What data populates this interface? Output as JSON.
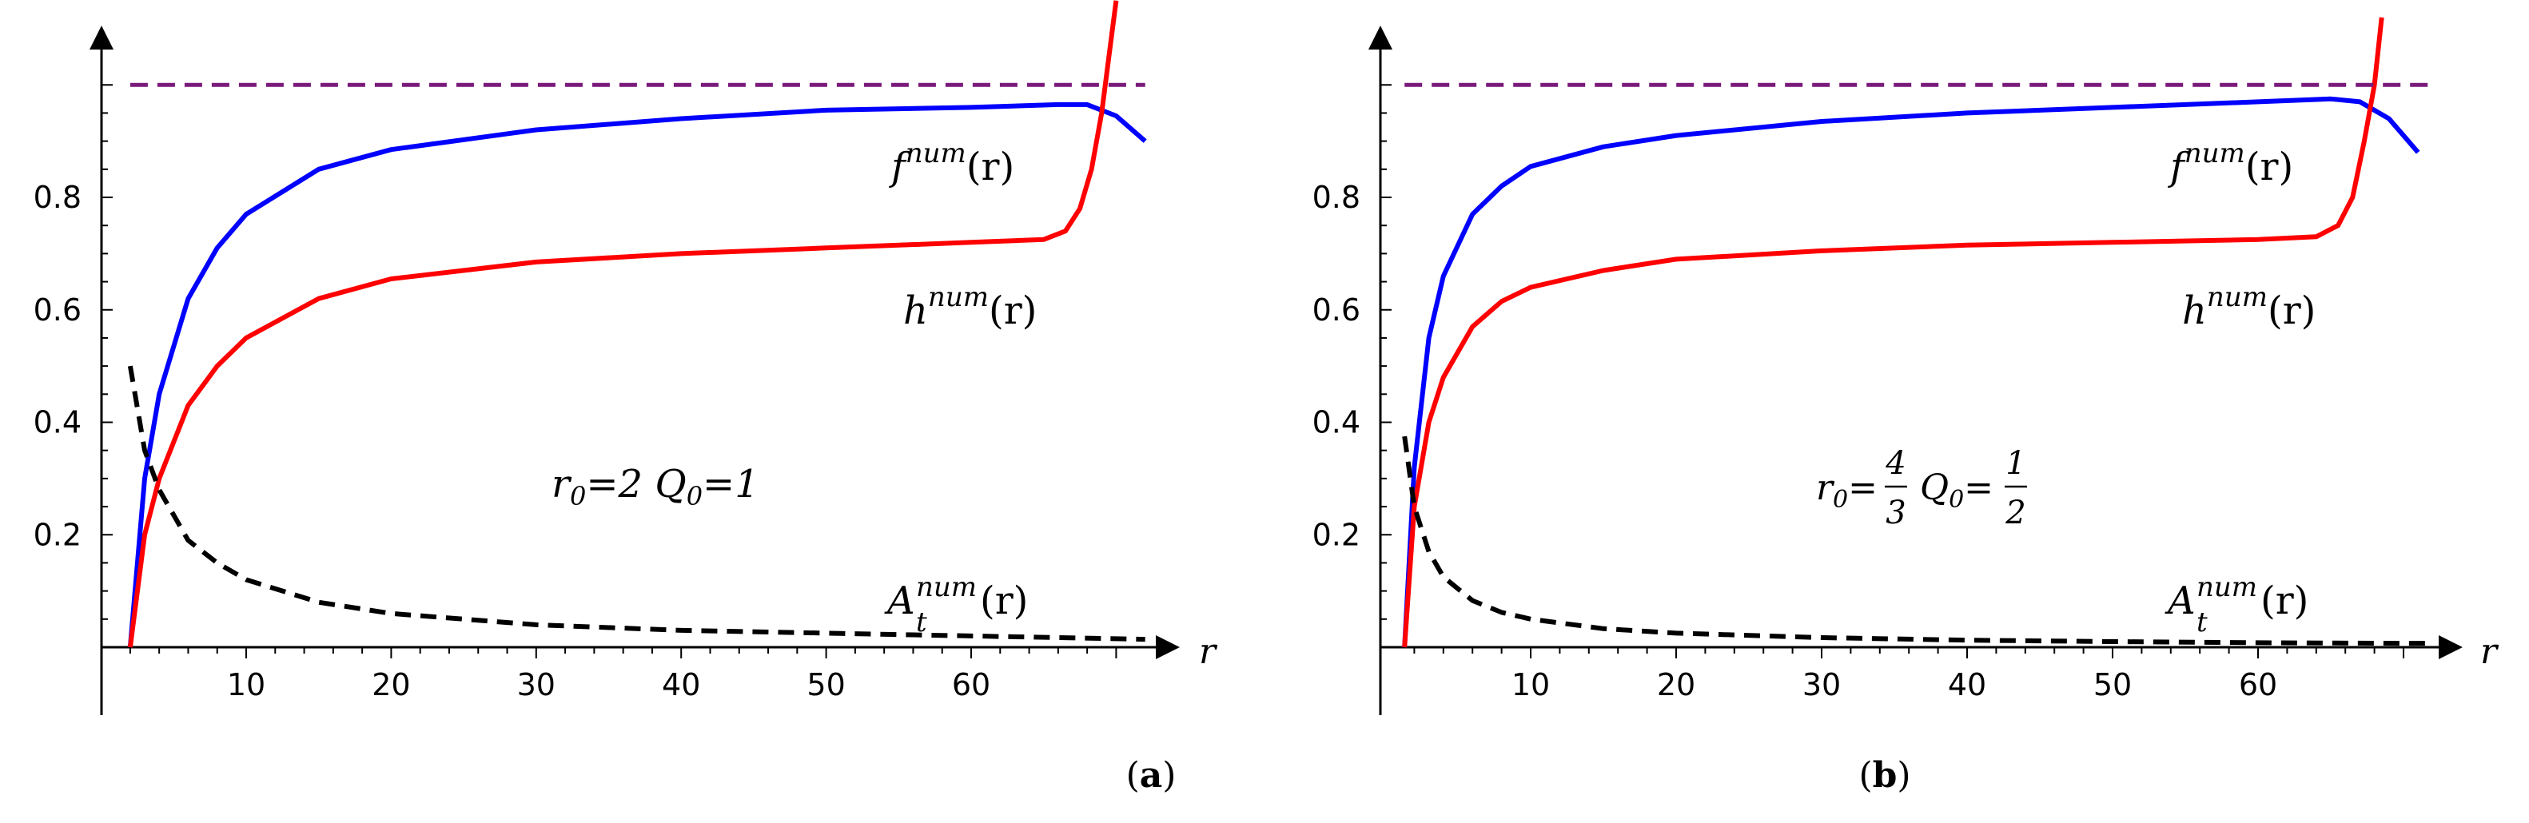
{
  "chart_data": [
    {
      "type": "line",
      "panel_label": "(a)",
      "panel_letter": "a",
      "xlabel": "r",
      "ylabel": "",
      "xlim": [
        0,
        74
      ],
      "ylim": [
        0,
        1.05
      ],
      "xticks": [
        10,
        20,
        30,
        40,
        50,
        60
      ],
      "yticks": [
        0.2,
        0.4,
        0.6,
        0.8
      ],
      "annotation": {
        "r0": "2",
        "Q0": "1"
      },
      "series": [
        {
          "name": "f^num(r)",
          "base": "f",
          "sup": "num",
          "arg": "(r)",
          "color": "#0000ff",
          "style": "solid",
          "x": [
            2,
            3,
            4,
            6,
            8,
            10,
            15,
            20,
            30,
            40,
            50,
            60,
            66,
            68,
            70,
            72
          ],
          "y": [
            0,
            0.3,
            0.45,
            0.62,
            0.71,
            0.77,
            0.85,
            0.885,
            0.92,
            0.94,
            0.955,
            0.96,
            0.965,
            0.965,
            0.945,
            0.9
          ]
        },
        {
          "name": "h^num(r)",
          "base": "h",
          "sup": "num",
          "arg": "(r)",
          "color": "#ff0000",
          "style": "solid",
          "x": [
            2,
            3,
            4,
            6,
            8,
            10,
            15,
            20,
            30,
            40,
            50,
            60,
            65,
            66.5,
            67.5,
            68.3,
            69,
            69.5,
            70
          ],
          "y": [
            0,
            0.2,
            0.3,
            0.43,
            0.5,
            0.55,
            0.62,
            0.655,
            0.685,
            0.7,
            0.71,
            0.72,
            0.725,
            0.74,
            0.78,
            0.85,
            0.95,
            1.05,
            1.15
          ]
        },
        {
          "name": "A_t^num(r)",
          "base": "A",
          "sub": "t",
          "sup": "num",
          "arg": "(r)",
          "color": "#000000",
          "style": "dashed",
          "x": [
            2,
            3,
            4,
            6,
            8,
            10,
            15,
            20,
            30,
            40,
            50,
            60,
            70,
            72
          ],
          "y": [
            0.5,
            0.35,
            0.28,
            0.19,
            0.15,
            0.12,
            0.08,
            0.06,
            0.04,
            0.03,
            0.025,
            0.02,
            0.015,
            0.014
          ]
        },
        {
          "name": "asymptote",
          "color": "#7a1a7a",
          "style": "dashed",
          "x": [
            2,
            72
          ],
          "y": [
            1,
            1
          ]
        }
      ]
    },
    {
      "type": "line",
      "panel_label": "(b)",
      "panel_letter": "b",
      "xlabel": "r",
      "ylabel": "",
      "xlim": [
        0,
        74
      ],
      "ylim": [
        0,
        1.05
      ],
      "xticks": [
        10,
        20,
        30,
        40,
        50,
        60
      ],
      "yticks": [
        0.2,
        0.4,
        0.6,
        0.8
      ],
      "annotation": {
        "r0_num": "4",
        "r0_den": "3",
        "Q0_num": "1",
        "Q0_den": "2"
      },
      "series": [
        {
          "name": "f^num(r)",
          "base": "f",
          "sup": "num",
          "arg": "(r)",
          "color": "#0000ff",
          "style": "solid",
          "x": [
            1.33,
            2,
            3,
            4,
            6,
            8,
            10,
            15,
            20,
            30,
            40,
            50,
            60,
            65,
            67,
            69,
            71
          ],
          "y": [
            0,
            0.32,
            0.55,
            0.66,
            0.77,
            0.82,
            0.855,
            0.89,
            0.91,
            0.935,
            0.95,
            0.96,
            0.97,
            0.975,
            0.97,
            0.94,
            0.88
          ]
        },
        {
          "name": "h^num(r)",
          "base": "h",
          "sup": "num",
          "arg": "(r)",
          "color": "#ff0000",
          "style": "solid",
          "x": [
            1.33,
            2,
            3,
            4,
            6,
            8,
            10,
            15,
            20,
            30,
            40,
            50,
            60,
            64,
            65.5,
            66.5,
            67.3,
            68,
            68.5
          ],
          "y": [
            0,
            0.25,
            0.4,
            0.48,
            0.57,
            0.615,
            0.64,
            0.67,
            0.69,
            0.705,
            0.715,
            0.72,
            0.725,
            0.73,
            0.75,
            0.8,
            0.9,
            1.0,
            1.12
          ]
        },
        {
          "name": "A_t^num(r)",
          "base": "A",
          "sub": "t",
          "sup": "num",
          "arg": "(r)",
          "color": "#000000",
          "style": "dashed",
          "x": [
            1.33,
            2,
            3,
            4,
            6,
            8,
            10,
            15,
            20,
            30,
            40,
            50,
            60,
            70,
            72
          ],
          "y": [
            0.375,
            0.25,
            0.17,
            0.125,
            0.083,
            0.062,
            0.05,
            0.033,
            0.025,
            0.017,
            0.0125,
            0.01,
            0.008,
            0.007,
            0.007
          ]
        },
        {
          "name": "asymptote",
          "color": "#7a1a7a",
          "style": "dashed",
          "x": [
            1.33,
            72
          ],
          "y": [
            1,
            1
          ]
        }
      ]
    }
  ]
}
